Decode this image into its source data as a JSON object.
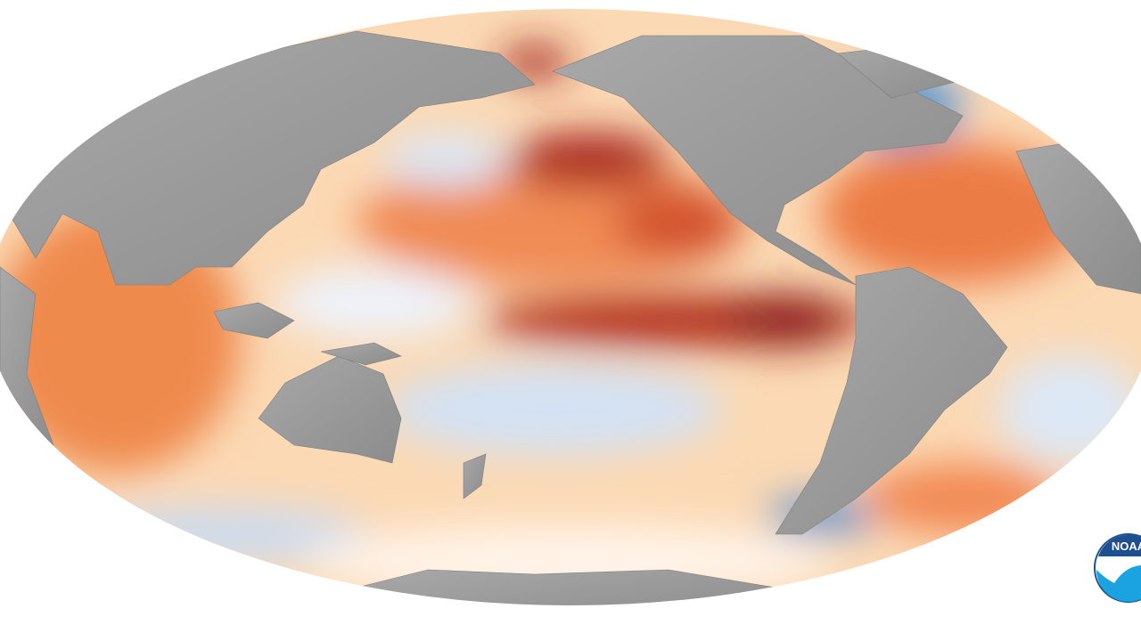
{
  "logo": {
    "text": "NOAA"
  }
}
